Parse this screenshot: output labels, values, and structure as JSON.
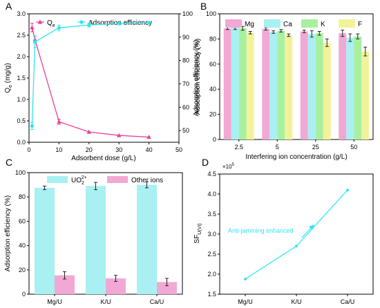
{
  "chart_data": [
    {
      "panel": "A",
      "type": "line",
      "xlabel": "Adsorbent dose (g/L)",
      "ylabel_left": "Q_e (mg/g)",
      "ylabel_right": "Adsorption efficiency (%)",
      "xlim": [
        0,
        50
      ],
      "ylim_left": [
        0,
        3.0
      ],
      "ylim_right": [
        45,
        100
      ],
      "xticks": [
        0,
        10,
        20,
        30,
        40,
        50
      ],
      "yticks_left": [
        0.0,
        0.5,
        1.0,
        1.5,
        2.0,
        2.5,
        3.0
      ],
      "yticks_right": [
        50,
        60,
        70,
        80,
        90,
        100
      ],
      "series": [
        {
          "name": "Q_e",
          "axis": "left",
          "color": "#e6409b",
          "marker": "triangle",
          "x": [
            1,
            2,
            10,
            20,
            30,
            40
          ],
          "y": [
            2.68,
            2.4,
            0.48,
            0.24,
            0.16,
            0.12
          ],
          "err": [
            0.1,
            0.08,
            0.06,
            0.0,
            0.0,
            0.0
          ]
        },
        {
          "name": "Adsorption efficiency",
          "axis": "right",
          "color": "#2ee6ee",
          "marker": "circle",
          "x": [
            1,
            2,
            10,
            20,
            30,
            40
          ],
          "y": [
            52,
            88,
            94,
            95.2,
            95.8,
            96.2
          ],
          "err": [
            1.5,
            2.5,
            1.2,
            0.8,
            0.5,
            0.4
          ]
        }
      ]
    },
    {
      "panel": "B",
      "type": "bar",
      "xlabel": "Interfering ion concentration (g/L)",
      "ylabel": "Adsorption efficiency (%)",
      "ylim": [
        0,
        100
      ],
      "yticks": [
        0,
        20,
        40,
        60,
        80,
        100
      ],
      "categories": [
        "2.5",
        "5",
        "25",
        "50"
      ],
      "series": [
        {
          "name": "Mg",
          "color": "#f2a8d4",
          "values": [
            88.5,
            88,
            86,
            84.5
          ],
          "err": [
            1,
            1,
            1,
            2.5
          ]
        },
        {
          "name": "Ca",
          "color": "#a8f0f2",
          "values": [
            89,
            85.5,
            84,
            81
          ],
          "err": [
            1.5,
            1,
            2.5,
            3
          ]
        },
        {
          "name": "K",
          "color": "#a8f0a0",
          "values": [
            88.5,
            86.5,
            84.5,
            82
          ],
          "err": [
            1.5,
            1,
            1.5,
            2
          ]
        },
        {
          "name": "F",
          "color": "#f2f29a",
          "values": [
            85,
            83,
            77,
            70
          ],
          "err": [
            1,
            1,
            3,
            3.5
          ]
        }
      ]
    },
    {
      "panel": "C",
      "type": "bar",
      "ylabel": "Adsorption efficiency (%)",
      "ylim": [
        0,
        100
      ],
      "yticks": [
        0,
        20,
        40,
        60,
        80,
        100
      ],
      "categories": [
        "Mg/U",
        "K/U",
        "Ca/U"
      ],
      "series": [
        {
          "name": "UO2 2+",
          "color": "#a8f0f2",
          "values": [
            87.5,
            89,
            90
          ],
          "err": [
            1.5,
            3,
            2.5
          ]
        },
        {
          "name": "Other ions",
          "color": "#f2a8d4",
          "values": [
            15.5,
            13,
            10
          ],
          "err": [
            3,
            2.5,
            3
          ]
        }
      ]
    },
    {
      "panel": "D",
      "type": "line",
      "ylabel": "SF U(VI)",
      "ylabel_sup": "×10",
      "ylabel_exp": "5",
      "ylim": [
        1.5,
        4.5
      ],
      "yticks": [
        1.5,
        2.0,
        2.5,
        3.0,
        3.5,
        4.0,
        4.5
      ],
      "categories": [
        "Mg/U",
        "K/U",
        "Ca/U"
      ],
      "values": [
        1.88,
        2.7,
        4.1
      ],
      "color": "#2ee6ee",
      "annotation": "Anti-jamming enhanced"
    }
  ],
  "panel_letters": {
    "a": "A",
    "b": "B",
    "c": "C",
    "d": "D"
  },
  "legend_c": {
    "uo2_main": "UO",
    "uo2_sub": "2",
    "uo2_sup": "2+",
    "other": "Other ions"
  },
  "legend_a": {
    "qe_main": "Q",
    "qe_sub": "e",
    "eff": "Adsorption efficiency"
  },
  "ylabel_a": {
    "main": "Q",
    "sub": "e",
    "rest": " (mg/g)"
  },
  "ylabel_d": {
    "main": "SF",
    "sub": "U(VI)"
  }
}
